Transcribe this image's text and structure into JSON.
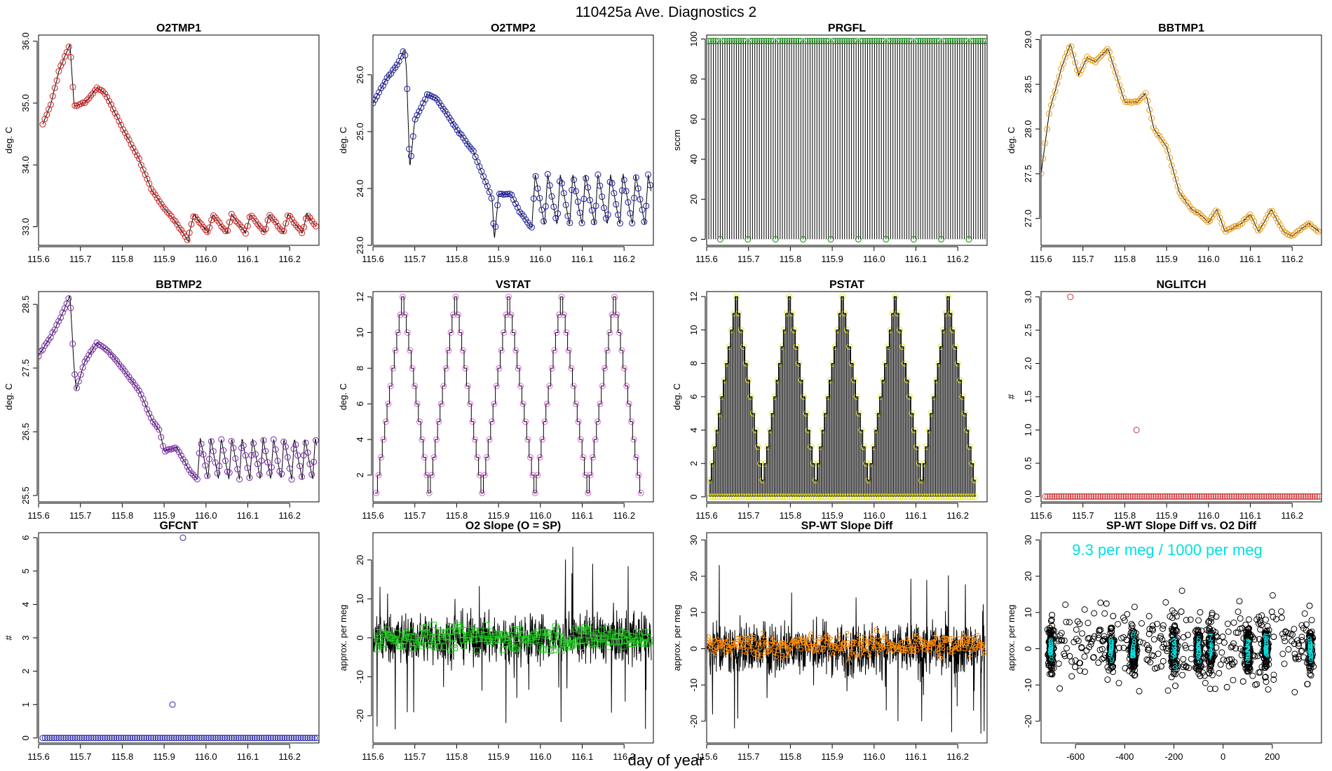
{
  "page": {
    "title": "110425a   Ave. Diagnostics 2",
    "xlabel": "day of year"
  },
  "chart_data": [
    {
      "id": "o2tmp1",
      "type": "line",
      "title": "O2TMP1",
      "ylabel": "deg. C",
      "xlim": [
        115.6,
        116.27
      ],
      "ylim": [
        32.7,
        36.1
      ],
      "xticks": [
        115.6,
        115.7,
        115.8,
        115.9,
        116.0,
        116.1,
        116.2
      ],
      "xtick_labels": [
        "115.6",
        "115.7",
        "115.8",
        "115.9",
        "116.0",
        "116.1",
        "116.2"
      ],
      "yticks": [
        33.0,
        34.0,
        35.0,
        36.0
      ],
      "ytick_labels": [
        "33.0",
        "34.0",
        "35.0",
        "36.0"
      ],
      "marker_color": "#cc2222",
      "marker": "circle",
      "anchors": [
        [
          115.61,
          34.65
        ],
        [
          115.63,
          35.0
        ],
        [
          115.65,
          35.55
        ],
        [
          115.675,
          35.95
        ],
        [
          115.685,
          34.95
        ],
        [
          115.71,
          35.0
        ],
        [
          115.74,
          35.25
        ],
        [
          115.76,
          35.15
        ],
        [
          115.8,
          34.6
        ],
        [
          115.84,
          34.1
        ],
        [
          115.87,
          33.6
        ],
        [
          115.9,
          33.3
        ],
        [
          115.925,
          33.1
        ],
        [
          115.96,
          32.75
        ]
      ],
      "osc": {
        "from": 115.96,
        "to": 116.265,
        "base": 32.9,
        "amp": 0.3,
        "period": 0.045
      }
    },
    {
      "id": "o2tmp2",
      "type": "line",
      "title": "O2TMP2",
      "ylabel": "deg. C",
      "xlim": [
        115.6,
        116.27
      ],
      "ylim": [
        23.0,
        26.7
      ],
      "xticks": [
        115.6,
        115.7,
        115.8,
        115.9,
        116.0,
        116.1,
        116.2
      ],
      "xtick_labels": [
        "115.6",
        "115.7",
        "115.8",
        "115.9",
        "116.0",
        "116.1",
        "116.2"
      ],
      "yticks": [
        23.0,
        24.0,
        25.0,
        26.0
      ],
      "ytick_labels": [
        "23.0",
        "24.0",
        "25.0",
        "26.0"
      ],
      "marker_color": "#1a1aa0",
      "marker": "circle",
      "anchors": [
        [
          115.6,
          25.5
        ],
        [
          115.63,
          25.9
        ],
        [
          115.66,
          26.2
        ],
        [
          115.675,
          26.45
        ],
        [
          115.68,
          26.1
        ],
        [
          115.688,
          24.35
        ],
        [
          115.7,
          25.2
        ],
        [
          115.73,
          25.65
        ],
        [
          115.75,
          25.6
        ],
        [
          115.8,
          25.05
        ],
        [
          115.84,
          24.65
        ],
        [
          115.87,
          24.1
        ],
        [
          115.885,
          23.8
        ],
        [
          115.89,
          23.1
        ],
        [
          115.9,
          23.9
        ],
        [
          115.93,
          23.9
        ],
        [
          115.95,
          23.6
        ],
        [
          115.98,
          23.3
        ]
      ],
      "osc": {
        "from": 115.98,
        "to": 116.265,
        "base": 23.35,
        "amp": 0.9,
        "period": 0.03
      }
    },
    {
      "id": "prgfl",
      "type": "spikes",
      "title": "PRGFL",
      "ylabel": "sccm",
      "xlim": [
        115.6,
        116.27
      ],
      "ylim": [
        -3,
        102
      ],
      "xticks": [
        115.6,
        115.7,
        115.8,
        115.9,
        116.0,
        116.1,
        116.2
      ],
      "xtick_labels": [
        "115.6",
        "115.7",
        "115.8",
        "115.9",
        "116.0",
        "116.1",
        "116.2"
      ],
      "yticks": [
        0,
        20,
        40,
        60,
        80,
        100
      ],
      "ytick_labels": [
        "0",
        "20",
        "40",
        "60",
        "80",
        "100"
      ],
      "marker_color": "#1a8a1a",
      "marker": "circle",
      "high": 99,
      "low": 0,
      "spacing": 0.0055,
      "zero_every": 12
    },
    {
      "id": "bbtmp1",
      "type": "line",
      "title": "BBTMP1",
      "ylabel": "deg. C",
      "xlim": [
        115.6,
        116.27
      ],
      "ylim": [
        26.7,
        29.05
      ],
      "xticks": [
        115.6,
        115.7,
        115.8,
        115.9,
        116.0,
        116.1,
        116.2
      ],
      "xtick_labels": [
        "115.6",
        "115.7",
        "115.8",
        "115.9",
        "116.0",
        "116.1",
        "116.2"
      ],
      "yticks": [
        27.0,
        27.5,
        28.0,
        28.5,
        29.0
      ],
      "ytick_labels": [
        "27.0",
        "27.5",
        "28.0",
        "28.5",
        "29.0"
      ],
      "marker_color": "#e8a020",
      "marker": "circle",
      "anchors": [
        [
          115.6,
          27.5
        ],
        [
          115.62,
          28.2
        ],
        [
          115.65,
          28.7
        ],
        [
          115.67,
          28.95
        ],
        [
          115.69,
          28.6
        ],
        [
          115.71,
          28.8
        ],
        [
          115.73,
          28.75
        ],
        [
          115.76,
          28.9
        ],
        [
          115.8,
          28.3
        ],
        [
          115.83,
          28.3
        ],
        [
          115.85,
          28.4
        ],
        [
          115.87,
          28.0
        ],
        [
          115.9,
          27.8
        ],
        [
          115.93,
          27.3
        ],
        [
          115.96,
          27.1
        ],
        [
          115.98,
          27.05
        ],
        [
          116.0,
          26.95
        ],
        [
          116.02,
          27.1
        ],
        [
          116.04,
          26.85
        ],
        [
          116.06,
          26.9
        ],
        [
          116.08,
          26.95
        ],
        [
          116.1,
          27.05
        ],
        [
          116.12,
          26.85
        ],
        [
          116.15,
          27.1
        ],
        [
          116.18,
          26.85
        ],
        [
          116.2,
          26.8
        ],
        [
          116.24,
          26.95
        ],
        [
          116.265,
          26.85
        ]
      ]
    },
    {
      "id": "bbtmp2",
      "type": "line",
      "title": "BBTMP2",
      "ylabel": "deg. C",
      "xlim": [
        115.6,
        116.27
      ],
      "ylim": [
        25.4,
        28.7
      ],
      "xticks": [
        115.6,
        115.7,
        115.8,
        115.9,
        116.0,
        116.1,
        116.2
      ],
      "xtick_labels": [
        "115.6",
        "115.7",
        "115.8",
        "115.9",
        "116.0",
        "116.1",
        "116.2"
      ],
      "yticks": [
        25.5,
        26.5,
        27.5,
        28.5
      ],
      "ytick_labels": [
        "25.5",
        "26.5",
        "27.5",
        "28.5"
      ],
      "marker_color": "#7a2aa8",
      "marker": "circle",
      "anchors": [
        [
          115.6,
          27.7
        ],
        [
          115.63,
          28.0
        ],
        [
          115.66,
          28.4
        ],
        [
          115.675,
          28.65
        ],
        [
          115.685,
          27.5
        ],
        [
          115.69,
          27.15
        ],
        [
          115.71,
          27.6
        ],
        [
          115.74,
          27.9
        ],
        [
          115.77,
          27.75
        ],
        [
          115.8,
          27.5
        ],
        [
          115.84,
          27.15
        ],
        [
          115.87,
          26.7
        ],
        [
          115.89,
          26.5
        ],
        [
          115.9,
          26.2
        ],
        [
          115.93,
          26.25
        ],
        [
          115.96,
          25.9
        ],
        [
          115.98,
          25.75
        ]
      ],
      "osc": {
        "from": 115.98,
        "to": 116.265,
        "base": 25.75,
        "amp": 0.65,
        "period": 0.025
      }
    },
    {
      "id": "vstat",
      "type": "step",
      "title": "VSTAT",
      "ylabel": "deg. C",
      "xlim": [
        115.6,
        116.27
      ],
      "ylim": [
        0.5,
        12.3
      ],
      "xticks": [
        115.6,
        115.7,
        115.8,
        115.9,
        116.0,
        116.1,
        116.2
      ],
      "xtick_labels": [
        "115.6",
        "115.7",
        "115.8",
        "115.9",
        "116.0",
        "116.1",
        "116.2"
      ],
      "yticks": [
        2,
        4,
        6,
        8,
        10,
        12
      ],
      "ytick_labels": [
        "2",
        "4",
        "6",
        "8",
        "10",
        "12"
      ],
      "marker_color": "#e060e0",
      "marker": "circle",
      "x0": 115.605,
      "step": 0.00575,
      "min": 1,
      "max": 12,
      "cycles": 5
    },
    {
      "id": "pstat",
      "type": "stepfill",
      "title": "PSTAT",
      "ylabel": "deg. C",
      "xlim": [
        115.6,
        116.27
      ],
      "ylim": [
        -0.3,
        12.3
      ],
      "xticks": [
        115.6,
        115.7,
        115.8,
        115.9,
        116.0,
        116.1,
        116.2
      ],
      "xtick_labels": [
        "115.6",
        "115.7",
        "115.8",
        "115.9",
        "116.0",
        "116.1",
        "116.2"
      ],
      "yticks": [
        0,
        2,
        4,
        6,
        8,
        10,
        12
      ],
      "ytick_labels": [
        "0",
        "2",
        "4",
        "6",
        "8",
        "10",
        "12"
      ],
      "marker_color": "#e8e820",
      "marker": "circle",
      "x0": 115.605,
      "step": 0.00575,
      "min": 1,
      "max": 12,
      "cycles": 5
    },
    {
      "id": "nglitch",
      "type": "scatter",
      "title": "NGLITCH",
      "ylabel": "#",
      "xlim": [
        115.6,
        116.27
      ],
      "ylim": [
        -0.08,
        3.08
      ],
      "xticks": [
        115.6,
        115.7,
        115.8,
        115.9,
        116.0,
        116.1,
        116.2
      ],
      "xtick_labels": [
        "115.6",
        "115.7",
        "115.8",
        "115.9",
        "116.0",
        "116.1",
        "116.2"
      ],
      "yticks": [
        0.0,
        0.5,
        1.0,
        1.5,
        2.0,
        2.5,
        3.0
      ],
      "ytick_labels": [
        "0.0",
        "0.5",
        "1.0",
        "1.5",
        "2.0",
        "2.5",
        "3.0"
      ],
      "marker_color": "#cc3333",
      "marker": "circle",
      "baseline": 0,
      "from": 115.61,
      "to": 116.265,
      "count": 120,
      "points": [
        [
          115.67,
          3
        ],
        [
          115.828,
          1
        ]
      ]
    },
    {
      "id": "gfcnt",
      "type": "scatter",
      "title": "GFCNT",
      "ylabel": "#",
      "xlim": [
        115.6,
        116.27
      ],
      "ylim": [
        -0.15,
        6.15
      ],
      "xticks": [
        115.6,
        115.7,
        115.8,
        115.9,
        116.0,
        116.1,
        116.2
      ],
      "xtick_labels": [
        "115.6",
        "115.7",
        "115.8",
        "115.9",
        "116.0",
        "116.1",
        "116.2"
      ],
      "yticks": [
        0,
        1,
        2,
        3,
        4,
        5,
        6
      ],
      "ytick_labels": [
        "0",
        "1",
        "2",
        "3",
        "4",
        "5",
        "6"
      ],
      "marker_color": "#2a2aa8",
      "marker": "circle",
      "baseline": 0,
      "from": 115.61,
      "to": 116.265,
      "count": 120,
      "points": [
        [
          115.92,
          1
        ],
        [
          115.945,
          6
        ]
      ]
    },
    {
      "id": "o2slope",
      "type": "noise",
      "title": "O2 Slope (O = SP)",
      "ylabel": "approx. per meg",
      "xlim": [
        115.6,
        116.27
      ],
      "ylim": [
        -27,
        27
      ],
      "xticks": [
        115.6,
        115.7,
        115.8,
        115.9,
        116.0,
        116.1,
        116.2
      ],
      "xtick_labels": [
        "115.6",
        "115.7",
        "115.8",
        "115.9",
        "116.0",
        "116.1",
        "116.2"
      ],
      "yticks": [
        -20,
        -10,
        0,
        10,
        20
      ],
      "ytick_labels": [
        "-20",
        "-10",
        "0",
        "10",
        "20"
      ],
      "marker_color": "#22cc22",
      "marker": "square",
      "center": 0,
      "spread": 6,
      "outliers": 20,
      "from": 115.6,
      "to": 116.265
    },
    {
      "id": "spwt",
      "type": "noise",
      "title": "SP-WT Slope Diff",
      "ylabel": "approx. per meg",
      "xlim": [
        115.6,
        116.27
      ],
      "ylim": [
        -26,
        32
      ],
      "xticks": [
        115.6,
        115.7,
        115.8,
        115.9,
        116.0,
        116.1,
        116.2
      ],
      "xtick_labels": [
        "115.6",
        "115.7",
        "115.8",
        "115.9",
        "116.0",
        "116.1",
        "116.2"
      ],
      "yticks": [
        -20,
        -10,
        0,
        10,
        20,
        30
      ],
      "ytick_labels": [
        "-20",
        "-10",
        "0",
        "10",
        "20",
        "30"
      ],
      "marker_color": "#ff8800",
      "marker": "digits",
      "center": 0,
      "spread": 7,
      "outliers": 18,
      "from": 115.6,
      "to": 116.265,
      "digits": [
        "2",
        "9",
        "A",
        "5",
        "6",
        "3",
        "7"
      ]
    },
    {
      "id": "spwtvs",
      "type": "clusters",
      "title": "SP-WT Slope Diff vs. O2 Diff",
      "ylabel": "approx. per meg",
      "xlim": [
        -740,
        400
      ],
      "ylim": [
        -26,
        32
      ],
      "xticks": [
        -600,
        -400,
        -200,
        0,
        200
      ],
      "xtick_labels": [
        "-600",
        "-400",
        "-200",
        "0",
        "200"
      ],
      "yticks": [
        -20,
        -10,
        0,
        10,
        20,
        30
      ],
      "ytick_labels": [
        "-20",
        "-10",
        "0",
        "10",
        "20",
        "30"
      ],
      "marker_color": "#000000",
      "marker": "circle",
      "label_color": "#00e0e0",
      "annotation": "9.3 per meg / 1000 per meg",
      "cluster_centers": [
        -700,
        -455,
        -365,
        -200,
        -100,
        -50,
        100,
        175,
        355
      ],
      "cluster_labels": [
        "8",
        "9",
        "8",
        "3",
        "5",
        "7",
        "2",
        "6",
        "9"
      ]
    }
  ]
}
